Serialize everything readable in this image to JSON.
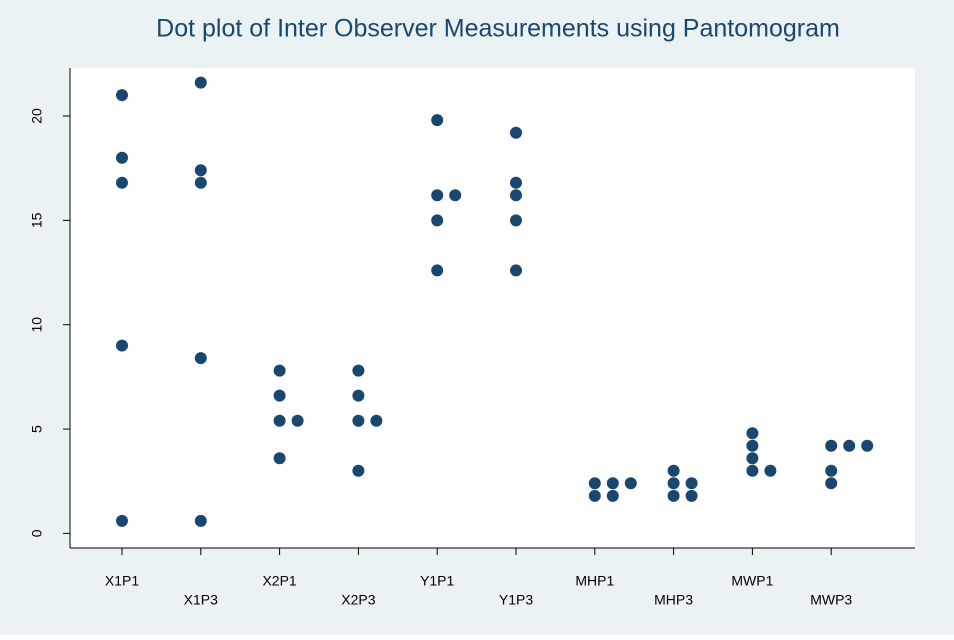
{
  "chart_data": {
    "type": "dot",
    "title": "Dot plot of Inter Observer Measurements using Pantomogram",
    "categories": [
      "X1P1",
      "X1P3",
      "X2P1",
      "X2P3",
      "Y1P1",
      "Y1P3",
      "MHP1",
      "MHP3",
      "MWP1",
      "MWP3"
    ],
    "values": [
      [
        21,
        18,
        16.8,
        9,
        0.6
      ],
      [
        21.6,
        17.4,
        16.8,
        8.4,
        0.6
      ],
      [
        7.8,
        6.6,
        5.4,
        5.4,
        3.6
      ],
      [
        7.8,
        6.6,
        5.4,
        5.4,
        3.0
      ],
      [
        19.8,
        16.2,
        16.2,
        15,
        12.6
      ],
      [
        19.2,
        16.8,
        16.2,
        15,
        12.6
      ],
      [
        2.4,
        2.4,
        2.4,
        1.8,
        1.8
      ],
      [
        3.0,
        2.4,
        2.4,
        1.8,
        1.8
      ],
      [
        4.8,
        4.2,
        3.6,
        3.0,
        3.0
      ],
      [
        4.2,
        4.2,
        4.2,
        3.0,
        2.4
      ]
    ],
    "color": "#1a476f",
    "ylim": [
      -0.7,
      22.3
    ],
    "yticks": [
      0,
      5,
      10,
      15,
      20
    ],
    "grid": false
  }
}
